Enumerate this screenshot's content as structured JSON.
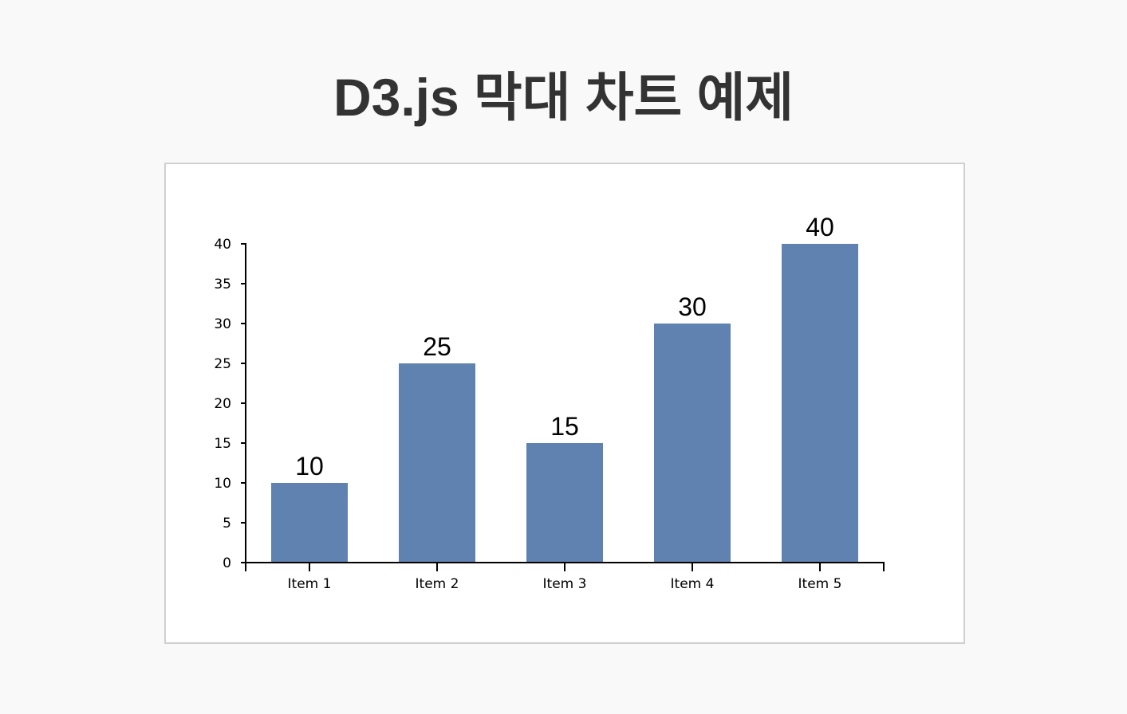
{
  "page": {
    "title": "D3.js 막대 차트 예제"
  },
  "colors": {
    "bar": "#5f82b0",
    "axis": "#000000",
    "title": "#333333"
  },
  "chart_data": {
    "type": "bar",
    "title": "",
    "xlabel": "",
    "ylabel": "",
    "categories": [
      "Item 1",
      "Item 2",
      "Item 3",
      "Item 4",
      "Item 5"
    ],
    "values": [
      10,
      25,
      15,
      30,
      40
    ],
    "ylim": [
      0,
      40
    ],
    "yticks": [
      0,
      5,
      10,
      15,
      20,
      25,
      30,
      35,
      40
    ],
    "data_labels": true,
    "grid": false,
    "legend": "none"
  }
}
